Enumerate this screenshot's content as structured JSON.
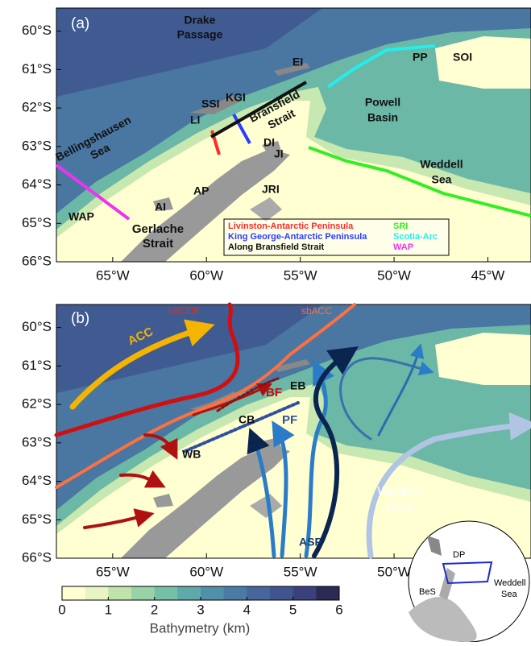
{
  "panel_a": {
    "label": "(a)",
    "xlim": [
      -68,
      -42.7
    ],
    "ylim": [
      -66,
      -59.4
    ],
    "xticks": [
      {
        "value": -65,
        "label": "65°W"
      },
      {
        "value": -60,
        "label": "60°W"
      },
      {
        "value": -55,
        "label": "55°W"
      },
      {
        "value": -50,
        "label": "50°W"
      },
      {
        "value": -45,
        "label": "45°W"
      }
    ],
    "yticks": [
      {
        "value": -60,
        "label": "60°S"
      },
      {
        "value": -61,
        "label": "61°S"
      },
      {
        "value": -62,
        "label": "62°S"
      },
      {
        "value": -63,
        "label": "63°S"
      },
      {
        "value": -64,
        "label": "64°S"
      },
      {
        "value": -65,
        "label": "65°S"
      },
      {
        "value": -66,
        "label": "66°S"
      }
    ],
    "labels": {
      "drake": "Drake",
      "passage": "Passage",
      "ei": "EI",
      "pp": "PP",
      "soi": "SOI",
      "ssi": "SSI",
      "kgi": "KGI",
      "li": "LI",
      "bransfield": "Bransfield",
      "strait": "Strait",
      "powell": "Powell",
      "basin": "Basin",
      "bellingshausen": "Bellingshausen",
      "sea": "Sea",
      "di": "DI",
      "ji": "JI",
      "weddell": "Weddell",
      "wsea": "Sea",
      "ap": "AP",
      "jri": "JRI",
      "ai": "AI",
      "wap": "WAP",
      "gerlache": "Gerlache",
      "gstrait": "Strait"
    },
    "legend": [
      {
        "name": "Livinston-Antarctic Peninsula",
        "color": "#ff2a2a"
      },
      {
        "name": "King George-Antarctic Peninsula",
        "color": "#2a3cff"
      },
      {
        "name": "Along Bransfield Strait",
        "color": "#111111"
      },
      {
        "name": "SRI",
        "color": "#33ee22"
      },
      {
        "name": "Scotia-Arc",
        "color": "#22eeee"
      },
      {
        "name": "WAP",
        "color": "#ee33ee"
      }
    ]
  },
  "panel_b": {
    "label": "(b)",
    "xlim": [
      -68,
      -42.7
    ],
    "ylim": [
      -66,
      -59.4
    ],
    "xticks": [
      {
        "value": -65,
        "label": "65°W"
      },
      {
        "value": -60,
        "label": "60°W"
      },
      {
        "value": -55,
        "label": "55°W"
      },
      {
        "value": -50,
        "label": "50°W"
      }
    ],
    "yticks": [
      {
        "value": -60,
        "label": "60°S"
      },
      {
        "value": -61,
        "label": "61°S"
      },
      {
        "value": -62,
        "label": "62°S"
      },
      {
        "value": -63,
        "label": "63°S"
      },
      {
        "value": -64,
        "label": "64°S"
      },
      {
        "value": -65,
        "label": "65°S"
      },
      {
        "value": -66,
        "label": "66°S"
      }
    ],
    "labels": {
      "saccf": "sACCF",
      "sbacc": "sbACC",
      "acc": "ACC",
      "bf": "BF",
      "eb": "EB",
      "pf": "PF",
      "cb": "CB",
      "wb": "WB",
      "asf": "ASF",
      "weddell": "Weddell",
      "gyre": "Gyre"
    }
  },
  "inset": {
    "dp": "DP",
    "bes": "BeS",
    "weddell": "Weddell",
    "sea": "Sea"
  },
  "colorbar": {
    "xlim": [
      0,
      6
    ],
    "xticks": [
      0,
      1,
      2,
      3,
      4,
      5,
      6
    ],
    "label": "Bathymetry (km)",
    "colors": [
      "#ffffd2",
      "#e8f4c4",
      "#c0e3ac",
      "#98d2a6",
      "#74c0a8",
      "#5ea9a9",
      "#5090a8",
      "#4a7ba4",
      "#45679c",
      "#42548f",
      "#3b417c",
      "#2c2a55"
    ]
  }
}
